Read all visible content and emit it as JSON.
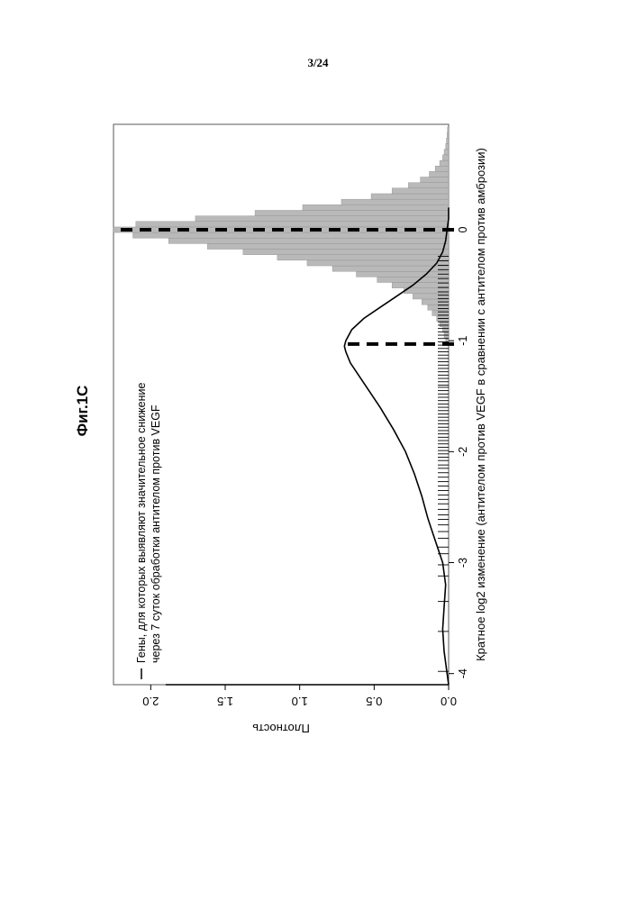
{
  "page": {
    "page_number": "3/24"
  },
  "chart_data": {
    "type": "histogram",
    "title": "Фиг.1C",
    "xlabel": "Кратное log2 изменение (антителом против VEGF в сравнении с антителом против амброзии)",
    "ylabel": "Плотность",
    "xlim": [
      -4.1,
      0.95
    ],
    "ylim": [
      0,
      2.25
    ],
    "x_ticks": [
      -4,
      -3,
      -2,
      -1,
      0
    ],
    "y_ticks": [
      "0.0",
      "0.5",
      "1.0",
      "1.5",
      "2.0"
    ],
    "legend": {
      "placement": "top-left",
      "entry": "Гены, для которых выявляют значительное снижение\nчерез 7 суток обработки антителом против VEGF"
    },
    "histogram": {
      "bin_width": 0.05,
      "bins": [
        {
          "x": -1.0,
          "y": 0.02
        },
        {
          "x": -0.95,
          "y": 0.03
        },
        {
          "x": -0.9,
          "y": 0.04
        },
        {
          "x": -0.85,
          "y": 0.06
        },
        {
          "x": -0.8,
          "y": 0.08
        },
        {
          "x": -0.75,
          "y": 0.11
        },
        {
          "x": -0.7,
          "y": 0.14
        },
        {
          "x": -0.65,
          "y": 0.18
        },
        {
          "x": -0.6,
          "y": 0.24
        },
        {
          "x": -0.55,
          "y": 0.3
        },
        {
          "x": -0.5,
          "y": 0.38
        },
        {
          "x": -0.45,
          "y": 0.48
        },
        {
          "x": -0.4,
          "y": 0.62
        },
        {
          "x": -0.35,
          "y": 0.78
        },
        {
          "x": -0.3,
          "y": 0.95
        },
        {
          "x": -0.25,
          "y": 1.15
        },
        {
          "x": -0.2,
          "y": 1.38
        },
        {
          "x": -0.15,
          "y": 1.62
        },
        {
          "x": -0.1,
          "y": 1.88
        },
        {
          "x": -0.05,
          "y": 2.12
        },
        {
          "x": 0.0,
          "y": 2.35
        },
        {
          "x": 0.05,
          "y": 2.1
        },
        {
          "x": 0.1,
          "y": 1.7
        },
        {
          "x": 0.15,
          "y": 1.3
        },
        {
          "x": 0.2,
          "y": 0.98
        },
        {
          "x": 0.25,
          "y": 0.72
        },
        {
          "x": 0.3,
          "y": 0.52
        },
        {
          "x": 0.35,
          "y": 0.38
        },
        {
          "x": 0.4,
          "y": 0.27
        },
        {
          "x": 0.45,
          "y": 0.19
        },
        {
          "x": 0.5,
          "y": 0.13
        },
        {
          "x": 0.55,
          "y": 0.09
        },
        {
          "x": 0.6,
          "y": 0.06
        },
        {
          "x": 0.65,
          "y": 0.04
        },
        {
          "x": 0.7,
          "y": 0.03
        },
        {
          "x": 0.75,
          "y": 0.02
        },
        {
          "x": 0.8,
          "y": 0.015
        },
        {
          "x": 0.85,
          "y": 0.01
        },
        {
          "x": 0.9,
          "y": 0.008
        }
      ]
    },
    "density_curve": {
      "x": [
        -4.1,
        -4.0,
        -3.8,
        -3.6,
        -3.4,
        -3.2,
        -3.0,
        -2.8,
        -2.6,
        -2.4,
        -2.2,
        -2.0,
        -1.8,
        -1.6,
        -1.4,
        -1.3,
        -1.2,
        -1.1,
        -1.05,
        -1.0,
        -0.9,
        -0.8,
        -0.7,
        -0.6,
        -0.5,
        -0.4,
        -0.3,
        -0.2,
        -0.1,
        0.0,
        0.1,
        0.2
      ],
      "y": [
        0.0,
        0.01,
        0.03,
        0.04,
        0.03,
        0.02,
        0.04,
        0.09,
        0.14,
        0.18,
        0.23,
        0.29,
        0.37,
        0.46,
        0.56,
        0.61,
        0.66,
        0.69,
        0.7,
        0.69,
        0.65,
        0.57,
        0.46,
        0.35,
        0.24,
        0.15,
        0.08,
        0.04,
        0.02,
        0.01,
        0.0,
        0.0
      ]
    },
    "vertical_lines": [
      {
        "x": -1.03,
        "from_y": 0,
        "to_y": 0.7,
        "style": "dashed"
      },
      {
        "x": 0.0,
        "from_y": 0,
        "to_y": 2.3,
        "style": "dashed"
      }
    ],
    "rug_x": [
      -3.98,
      -3.62,
      -3.35,
      -3.12,
      -3.02,
      -2.92,
      -2.86,
      -2.78,
      -2.72,
      -2.66,
      -2.61,
      -2.57,
      -2.52,
      -2.47,
      -2.43,
      -2.39,
      -2.35,
      -2.31,
      -2.27,
      -2.23,
      -2.19,
      -2.15,
      -2.12,
      -2.08,
      -2.05,
      -2.02,
      -1.99,
      -1.96,
      -1.93,
      -1.9,
      -1.87,
      -1.84,
      -1.81,
      -1.78,
      -1.75,
      -1.72,
      -1.69,
      -1.66,
      -1.63,
      -1.6,
      -1.57,
      -1.54,
      -1.51,
      -1.48,
      -1.45,
      -1.42,
      -1.4,
      -1.37,
      -1.34,
      -1.31,
      -1.28,
      -1.25,
      -1.22,
      -1.19,
      -1.16,
      -1.13,
      -1.1,
      -1.07,
      -1.04,
      -1.01,
      -0.98,
      -0.95,
      -0.92,
      -0.89,
      -0.86,
      -0.83,
      -0.8,
      -0.77,
      -0.74,
      -0.71,
      -0.68,
      -0.65,
      -0.62,
      -0.59,
      -0.56,
      -0.52,
      -0.48,
      -0.44,
      -0.4,
      -0.36,
      -0.32,
      -0.28,
      -0.24
    ],
    "colors": {
      "hist_fill": "#b9b9b9",
      "hist_stroke": "#8f8f8f",
      "line": "#000000",
      "frame": "#555555"
    }
  }
}
